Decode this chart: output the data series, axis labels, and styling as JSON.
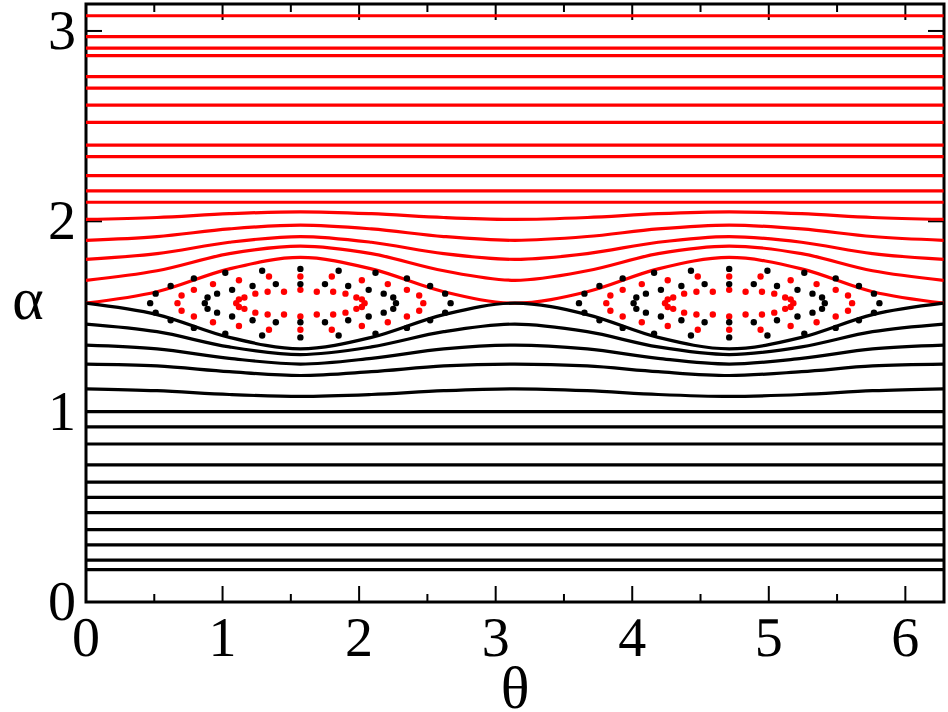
{
  "chart_data": {
    "type": "line",
    "xlabel": "θ",
    "ylabel": "α",
    "xlim": [
      0,
      6.283
    ],
    "ylim": [
      0,
      3.1416
    ],
    "xticks": [
      0,
      {
        "value": 0.5,
        "label": null
      },
      1,
      {
        "value": 1.5,
        "label": null
      },
      2,
      {
        "value": 2.5,
        "label": null
      },
      3,
      {
        "value": 3.5,
        "label": null
      },
      4,
      {
        "value": 4.5,
        "label": null
      },
      5,
      {
        "value": 5.5,
        "label": null
      },
      6
    ],
    "yticks": [
      0,
      1,
      2,
      3
    ],
    "grid": false,
    "line_style": "solid",
    "x": [
      0,
      0.52,
      1.05,
      1.57,
      2.09,
      2.62,
      3.14,
      3.67,
      4.19,
      4.71,
      5.24,
      5.76,
      6.28
    ],
    "series": [
      {
        "color": "#ff0000",
        "values": [
          1.57,
          1.63,
          1.75,
          1.81,
          1.75,
          1.63,
          1.57,
          1.63,
          1.75,
          1.81,
          1.75,
          1.63,
          1.57
        ]
      },
      {
        "color": "#ff0000",
        "values": [
          1.69,
          1.74,
          1.83,
          1.87,
          1.83,
          1.74,
          1.69,
          1.74,
          1.83,
          1.87,
          1.83,
          1.74,
          1.69
        ]
      },
      {
        "color": "#ff0000",
        "values": [
          1.8,
          1.83,
          1.89,
          1.92,
          1.89,
          1.83,
          1.8,
          1.83,
          1.89,
          1.92,
          1.89,
          1.83,
          1.8
        ]
      },
      {
        "color": "#ff0000",
        "values": [
          1.9,
          1.92,
          1.96,
          1.98,
          1.96,
          1.92,
          1.9,
          1.92,
          1.96,
          1.98,
          1.96,
          1.92,
          1.9
        ]
      },
      {
        "color": "#ff0000",
        "values": [
          2.01,
          2.02,
          2.04,
          2.05,
          2.04,
          2.02,
          2.01,
          2.02,
          2.04,
          2.05,
          2.04,
          2.02,
          2.01
        ]
      },
      {
        "color": "#000000",
        "values": [
          1.57,
          1.51,
          1.39,
          1.33,
          1.39,
          1.51,
          1.57,
          1.51,
          1.39,
          1.33,
          1.39,
          1.51,
          1.57
        ]
      },
      {
        "color": "#000000",
        "values": [
          1.46,
          1.42,
          1.34,
          1.3,
          1.34,
          1.42,
          1.46,
          1.42,
          1.34,
          1.3,
          1.34,
          1.42,
          1.46
        ]
      },
      {
        "color": "#000000",
        "values": [
          1.35,
          1.33,
          1.28,
          1.25,
          1.28,
          1.33,
          1.35,
          1.33,
          1.28,
          1.25,
          1.28,
          1.33,
          1.35
        ]
      },
      {
        "color": "#000000",
        "values": [
          1.25,
          1.24,
          1.21,
          1.19,
          1.21,
          1.24,
          1.25,
          1.24,
          1.21,
          1.19,
          1.21,
          1.24,
          1.25
        ]
      },
      {
        "color": "#000000",
        "values": [
          1.12,
          1.11,
          1.09,
          1.08,
          1.09,
          1.11,
          1.12,
          1.11,
          1.09,
          1.08,
          1.09,
          1.11,
          1.12
        ]
      },
      {
        "type": "scatter",
        "color": "#ff0000",
        "x": [
          2.04,
          2.02,
          1.98,
          1.9,
          1.81,
          1.69,
          1.57,
          1.45,
          1.33,
          1.24,
          1.16,
          1.12,
          1.1,
          1.12,
          1.16,
          1.24,
          1.33,
          1.45,
          1.57,
          1.69,
          1.81,
          1.9,
          1.98,
          2.02
        ],
        "values": [
          1.57,
          1.59,
          1.6,
          1.62,
          1.63,
          1.63,
          1.64,
          1.63,
          1.63,
          1.62,
          1.6,
          1.59,
          1.57,
          1.55,
          1.54,
          1.52,
          1.51,
          1.51,
          1.5,
          1.51,
          1.51,
          1.52,
          1.54,
          1.55
        ]
      },
      {
        "type": "scatter",
        "color": "#ff0000",
        "x": [
          5.18,
          5.16,
          5.12,
          5.04,
          4.95,
          4.83,
          4.71,
          4.59,
          4.47,
          4.38,
          4.3,
          4.26,
          4.24,
          4.26,
          4.3,
          4.38,
          4.47,
          4.59,
          4.71,
          4.83,
          4.95,
          5.04,
          5.12,
          5.16
        ],
        "values": [
          1.57,
          1.59,
          1.6,
          1.62,
          1.63,
          1.63,
          1.64,
          1.63,
          1.63,
          1.62,
          1.6,
          1.59,
          1.57,
          1.55,
          1.54,
          1.52,
          1.51,
          1.51,
          1.5,
          1.51,
          1.51,
          1.52,
          1.54,
          1.55
        ]
      },
      {
        "type": "scatter",
        "color": "#000000",
        "x": [
          2.27,
          2.25,
          2.18,
          2.07,
          1.92,
          1.75,
          1.57,
          1.39,
          1.22,
          1.07,
          0.96,
          0.89,
          0.87,
          0.89,
          0.96,
          1.07,
          1.22,
          1.39,
          1.57,
          1.75,
          1.92,
          2.07,
          2.18,
          2.25
        ],
        "values": [
          1.57,
          1.6,
          1.62,
          1.64,
          1.66,
          1.67,
          1.67,
          1.67,
          1.66,
          1.64,
          1.62,
          1.6,
          1.57,
          1.54,
          1.52,
          1.5,
          1.48,
          1.47,
          1.47,
          1.47,
          1.48,
          1.5,
          1.52,
          1.54
        ]
      },
      {
        "type": "scatter",
        "color": "#000000",
        "x": [
          5.41,
          5.39,
          5.32,
          5.21,
          5.06,
          4.89,
          4.71,
          4.53,
          4.36,
          4.21,
          4.1,
          4.03,
          4.01,
          4.03,
          4.1,
          4.21,
          4.36,
          4.53,
          4.71,
          4.89,
          5.06,
          5.21,
          5.32,
          5.39
        ],
        "values": [
          1.57,
          1.6,
          1.62,
          1.64,
          1.66,
          1.67,
          1.67,
          1.67,
          1.66,
          1.64,
          1.62,
          1.6,
          1.57,
          1.54,
          1.52,
          1.5,
          1.48,
          1.47,
          1.47,
          1.47,
          1.48,
          1.5,
          1.52,
          1.54
        ]
      },
      {
        "type": "scatter",
        "color": "#ff0000",
        "x": [
          2.47,
          2.44,
          2.35,
          2.21,
          2.02,
          1.8,
          1.57,
          1.34,
          1.12,
          0.93,
          0.79,
          0.7,
          0.67,
          0.7,
          0.79,
          0.93,
          1.12,
          1.34,
          1.57,
          1.8,
          2.02,
          2.21,
          2.35,
          2.44
        ],
        "values": [
          1.57,
          1.61,
          1.64,
          1.67,
          1.69,
          1.71,
          1.71,
          1.71,
          1.69,
          1.67,
          1.64,
          1.61,
          1.57,
          1.53,
          1.5,
          1.47,
          1.45,
          1.43,
          1.43,
          1.43,
          1.45,
          1.47,
          1.5,
          1.53
        ]
      },
      {
        "type": "scatter",
        "color": "#ff0000",
        "x": [
          5.61,
          5.58,
          5.49,
          5.35,
          5.16,
          4.94,
          4.71,
          4.48,
          4.26,
          4.07,
          3.93,
          3.84,
          3.81,
          3.84,
          3.93,
          4.07,
          4.26,
          4.48,
          4.71,
          4.94,
          5.16,
          5.35,
          5.49,
          5.58
        ],
        "values": [
          1.57,
          1.61,
          1.64,
          1.67,
          1.69,
          1.71,
          1.71,
          1.71,
          1.69,
          1.67,
          1.64,
          1.61,
          1.57,
          1.53,
          1.5,
          1.47,
          1.45,
          1.43,
          1.43,
          1.43,
          1.45,
          1.47,
          1.5,
          1.53
        ]
      },
      {
        "type": "scatter",
        "color": "#000000",
        "x": [
          2.67,
          2.63,
          2.52,
          2.35,
          2.12,
          1.85,
          1.57,
          1.29,
          1.02,
          0.79,
          0.62,
          0.51,
          0.47,
          0.51,
          0.62,
          0.79,
          1.02,
          1.29,
          1.57,
          1.85,
          2.12,
          2.35,
          2.52,
          2.63
        ],
        "values": [
          1.57,
          1.62,
          1.66,
          1.7,
          1.73,
          1.74,
          1.75,
          1.74,
          1.73,
          1.7,
          1.66,
          1.62,
          1.57,
          1.52,
          1.48,
          1.44,
          1.41,
          1.4,
          1.39,
          1.4,
          1.41,
          1.44,
          1.48,
          1.52
        ]
      },
      {
        "type": "scatter",
        "color": "#000000",
        "x": [
          5.81,
          5.77,
          5.66,
          5.49,
          5.26,
          4.99,
          4.71,
          4.43,
          4.16,
          3.93,
          3.76,
          3.65,
          3.61,
          3.65,
          3.76,
          3.93,
          4.16,
          4.43,
          4.71,
          4.99,
          5.26,
          5.49,
          5.66,
          5.77
        ],
        "values": [
          1.57,
          1.62,
          1.66,
          1.7,
          1.73,
          1.74,
          1.75,
          1.74,
          1.73,
          1.7,
          1.66,
          1.62,
          1.57,
          1.52,
          1.48,
          1.44,
          1.41,
          1.4,
          1.39,
          1.4,
          1.41,
          1.44,
          1.48,
          1.52
        ]
      },
      {
        "color": "#ff0000",
        "x": [
          0,
          6.28
        ],
        "values": [
          3.08,
          3.08
        ]
      },
      {
        "color": "#ff0000",
        "x": [
          0,
          6.28
        ],
        "values": [
          2.97,
          2.97
        ]
      },
      {
        "color": "#ff0000",
        "x": [
          0,
          6.28
        ],
        "values": [
          2.91,
          2.91
        ]
      },
      {
        "color": "#ff0000",
        "x": [
          0,
          6.28
        ],
        "values": [
          2.87,
          2.87
        ]
      },
      {
        "color": "#ff0000",
        "x": [
          0,
          6.28
        ],
        "values": [
          2.76,
          2.76
        ]
      },
      {
        "color": "#ff0000",
        "x": [
          0,
          6.28
        ],
        "values": [
          2.7,
          2.7
        ]
      },
      {
        "color": "#ff0000",
        "x": [
          0,
          6.28
        ],
        "values": [
          2.61,
          2.61
        ]
      },
      {
        "color": "#ff0000",
        "x": [
          0,
          6.28
        ],
        "values": [
          2.52,
          2.52
        ]
      },
      {
        "color": "#ff0000",
        "x": [
          0,
          6.28
        ],
        "values": [
          2.4,
          2.4
        ]
      },
      {
        "color": "#ff0000",
        "x": [
          0,
          6.28
        ],
        "values": [
          2.34,
          2.34
        ]
      },
      {
        "color": "#ff0000",
        "x": [
          0,
          6.28
        ],
        "values": [
          2.24,
          2.24
        ]
      },
      {
        "color": "#ff0000",
        "x": [
          0,
          6.28
        ],
        "values": [
          2.16,
          2.16
        ]
      },
      {
        "color": "#ff0000",
        "x": [
          0,
          6.28
        ],
        "values": [
          2.1,
          2.1
        ]
      },
      {
        "color": "#000000",
        "x": [
          0,
          6.28
        ],
        "values": [
          1.0,
          1.0
        ]
      },
      {
        "color": "#000000",
        "x": [
          0,
          6.28
        ],
        "values": [
          0.92,
          0.92
        ]
      },
      {
        "color": "#000000",
        "x": [
          0,
          6.28
        ],
        "values": [
          0.83,
          0.83
        ]
      },
      {
        "color": "#000000",
        "x": [
          0,
          6.28
        ],
        "values": [
          0.72,
          0.72
        ]
      },
      {
        "color": "#000000",
        "x": [
          0,
          6.28
        ],
        "values": [
          0.63,
          0.63
        ]
      },
      {
        "color": "#000000",
        "x": [
          0,
          6.28
        ],
        "values": [
          0.55,
          0.55
        ]
      },
      {
        "color": "#000000",
        "x": [
          0,
          6.28
        ],
        "values": [
          0.47,
          0.47
        ]
      },
      {
        "color": "#000000",
        "x": [
          0,
          6.28
        ],
        "values": [
          0.38,
          0.38
        ]
      },
      {
        "color": "#000000",
        "x": [
          0,
          6.28
        ],
        "values": [
          0.3,
          0.3
        ]
      },
      {
        "color": "#000000",
        "x": [
          0,
          6.28
        ],
        "values": [
          0.22,
          0.22
        ]
      },
      {
        "color": "#000000",
        "x": [
          0,
          6.28
        ],
        "values": [
          0.17,
          0.17
        ]
      }
    ]
  }
}
